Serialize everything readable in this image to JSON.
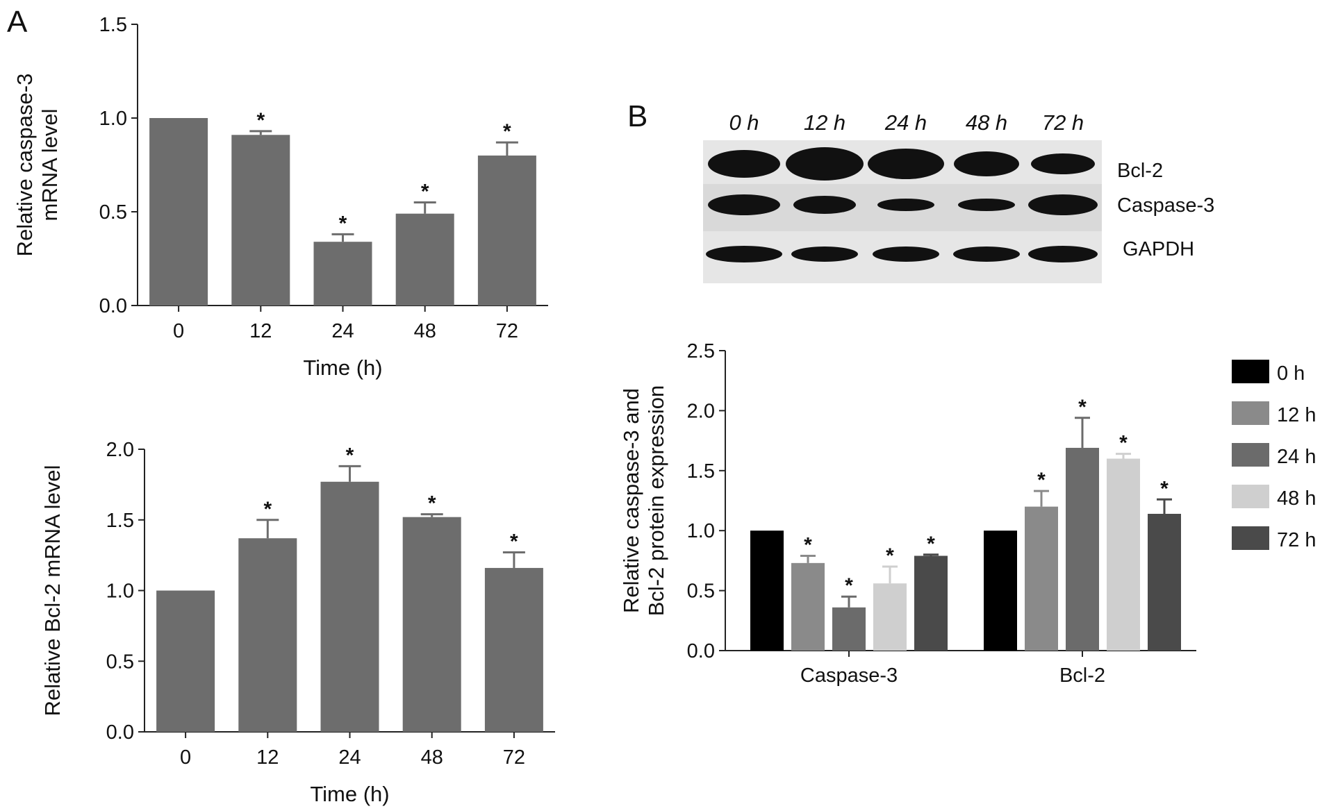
{
  "panels": {
    "a": "A",
    "b": "B"
  },
  "chart_data": [
    {
      "type": "bar",
      "panel": "A",
      "categories": [
        "0",
        "12",
        "24",
        "48",
        "72"
      ],
      "values": [
        1.0,
        0.91,
        0.34,
        0.49,
        0.8
      ],
      "errors": [
        0,
        0.02,
        0.04,
        0.06,
        0.07
      ],
      "significant": [
        false,
        true,
        true,
        true,
        true
      ],
      "xlabel": "Time (h)",
      "ylabel_lines": [
        "Relative caspase-3",
        "mRNA level"
      ],
      "ylim": [
        0,
        1.5
      ],
      "yticks": [
        "0.0",
        "0.5",
        "1.0",
        "1.5"
      ],
      "bar_color": "#6d6d6d"
    },
    {
      "type": "bar",
      "panel": "A",
      "categories": [
        "0",
        "12",
        "24",
        "48",
        "72"
      ],
      "values": [
        1.0,
        1.37,
        1.77,
        1.52,
        1.16
      ],
      "errors": [
        0,
        0.13,
        0.11,
        0.02,
        0.11
      ],
      "significant": [
        false,
        true,
        true,
        true,
        true
      ],
      "xlabel": "Time (h)",
      "ylabel_lines": [
        "Relative Bcl-2 mRNA level"
      ],
      "ylim": [
        0,
        2.0
      ],
      "yticks": [
        "0.0",
        "0.5",
        "1.0",
        "1.5",
        "2.0"
      ],
      "bar_color": "#6d6d6d"
    },
    {
      "type": "bar",
      "panel": "B",
      "categories": [
        "Caspase-3",
        "Bcl-2"
      ],
      "series": [
        {
          "name": "0 h",
          "color": "#000000",
          "values": [
            1.0,
            1.0
          ],
          "errors": [
            0,
            0
          ],
          "significant": [
            false,
            false
          ]
        },
        {
          "name": "12 h",
          "color": "#8a8a8a",
          "values": [
            0.73,
            1.2
          ],
          "errors": [
            0.06,
            0.13
          ],
          "significant": [
            true,
            true
          ]
        },
        {
          "name": "24 h",
          "color": "#6b6b6b",
          "values": [
            0.36,
            1.69
          ],
          "errors": [
            0.09,
            0.25
          ],
          "significant": [
            true,
            true
          ]
        },
        {
          "name": "48 h",
          "color": "#cfcfcf",
          "values": [
            0.56,
            1.6
          ],
          "errors": [
            0.14,
            0.04
          ],
          "significant": [
            true,
            true
          ]
        },
        {
          "name": "72 h",
          "color": "#4a4a4a",
          "values": [
            0.79,
            1.14
          ],
          "errors": [
            0.01,
            0.12
          ],
          "significant": [
            true,
            true
          ]
        }
      ],
      "ylabel_lines": [
        "Relative caspase-3 and",
        "Bcl-2 protein expression"
      ],
      "ylim": [
        0,
        2.5
      ],
      "yticks": [
        "0.0",
        "0.5",
        "1.0",
        "1.5",
        "2.0",
        "2.5"
      ],
      "legend_position": "right"
    }
  ],
  "blot": {
    "lanes": [
      "0 h",
      "12 h",
      "24 h",
      "48 h",
      "72 h"
    ],
    "bands": [
      "Bcl-2",
      "Caspase-3",
      "GAPDH"
    ]
  },
  "significance_marker": "*"
}
